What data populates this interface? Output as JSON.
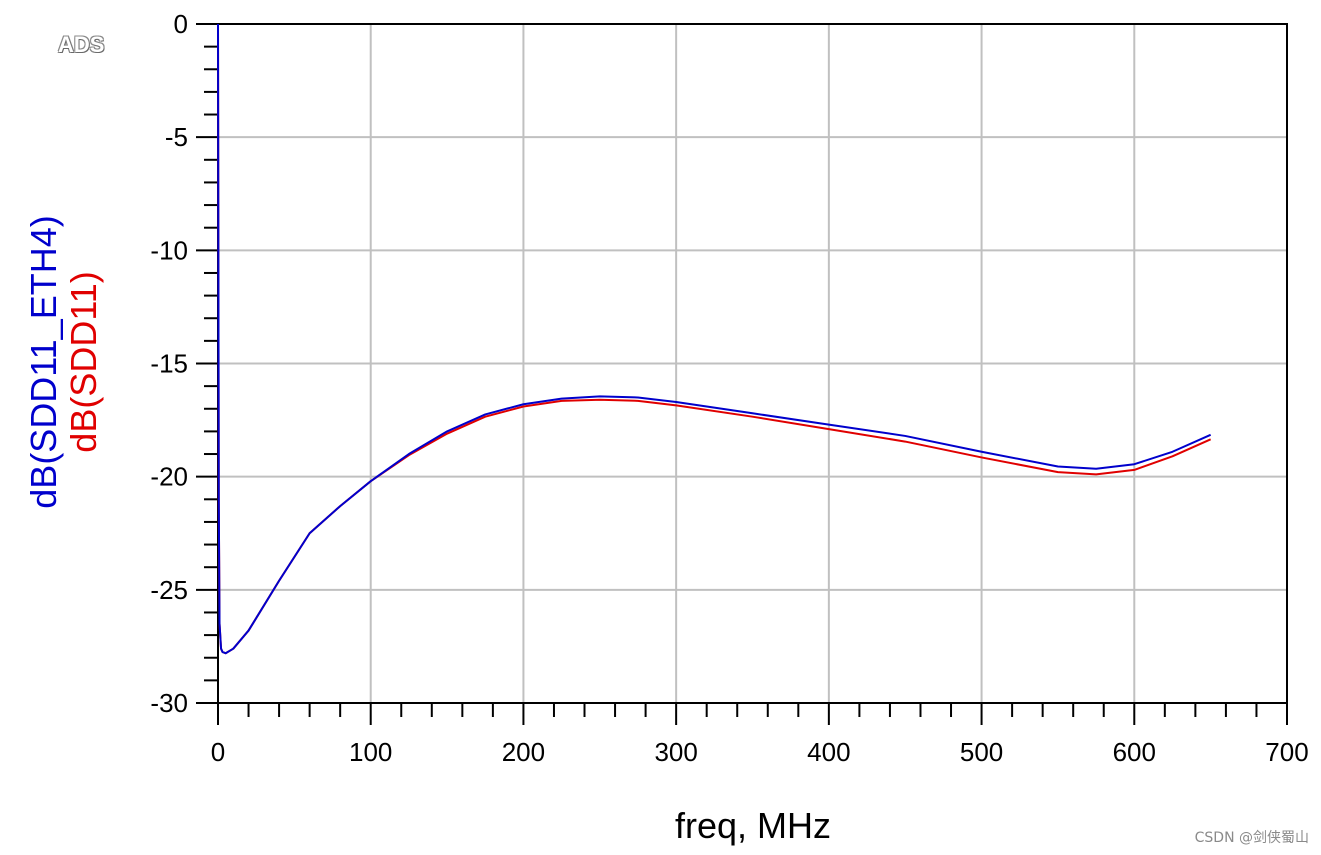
{
  "logo": "ADS",
  "watermark": "CSDN @剑侠蜀山",
  "colors": {
    "series1": "#0000cc",
    "series2": "#e00000",
    "grid": "#c0c0c0"
  },
  "chart_data": {
    "type": "line",
    "xlabel": "freq, MHz",
    "ylabels": [
      "dB(SDD11_ETH4)",
      "dB(SDD11)"
    ],
    "xlim": [
      0,
      700
    ],
    "ylim": [
      -30,
      0
    ],
    "xticks": [
      0,
      100,
      200,
      300,
      400,
      500,
      600,
      700
    ],
    "yticks": [
      0,
      -5,
      -10,
      -15,
      -20,
      -25,
      -30
    ],
    "grid": true,
    "series": [
      {
        "name": "dB(SDD11_ETH4)",
        "color": "#0000cc",
        "x": [
          0,
          0.5,
          1,
          2,
          3,
          5,
          10,
          20,
          40,
          60,
          80,
          100,
          125,
          150,
          175,
          200,
          225,
          250,
          275,
          300,
          350,
          400,
          450,
          500,
          550,
          575,
          600,
          625,
          650
        ],
        "y": [
          0,
          -21,
          -26.5,
          -27.6,
          -27.75,
          -27.8,
          -27.6,
          -26.8,
          -24.6,
          -22.5,
          -21.3,
          -20.2,
          -19.0,
          -18.0,
          -17.25,
          -16.8,
          -16.55,
          -16.45,
          -16.5,
          -16.7,
          -17.2,
          -17.7,
          -18.2,
          -18.9,
          -19.55,
          -19.65,
          -19.45,
          -18.9,
          -18.15
        ]
      },
      {
        "name": "dB(SDD11)",
        "color": "#e00000",
        "x": [
          0,
          0.5,
          1,
          2,
          3,
          5,
          10,
          20,
          40,
          60,
          80,
          100,
          125,
          150,
          175,
          200,
          225,
          250,
          275,
          300,
          350,
          400,
          450,
          500,
          550,
          575,
          600,
          625,
          650
        ],
        "y": [
          0,
          -21,
          -26.5,
          -27.6,
          -27.75,
          -27.8,
          -27.6,
          -26.8,
          -24.6,
          -22.5,
          -21.3,
          -20.2,
          -19.05,
          -18.1,
          -17.35,
          -16.9,
          -16.65,
          -16.6,
          -16.65,
          -16.85,
          -17.35,
          -17.9,
          -18.45,
          -19.15,
          -19.8,
          -19.9,
          -19.7,
          -19.1,
          -18.35
        ]
      }
    ]
  }
}
